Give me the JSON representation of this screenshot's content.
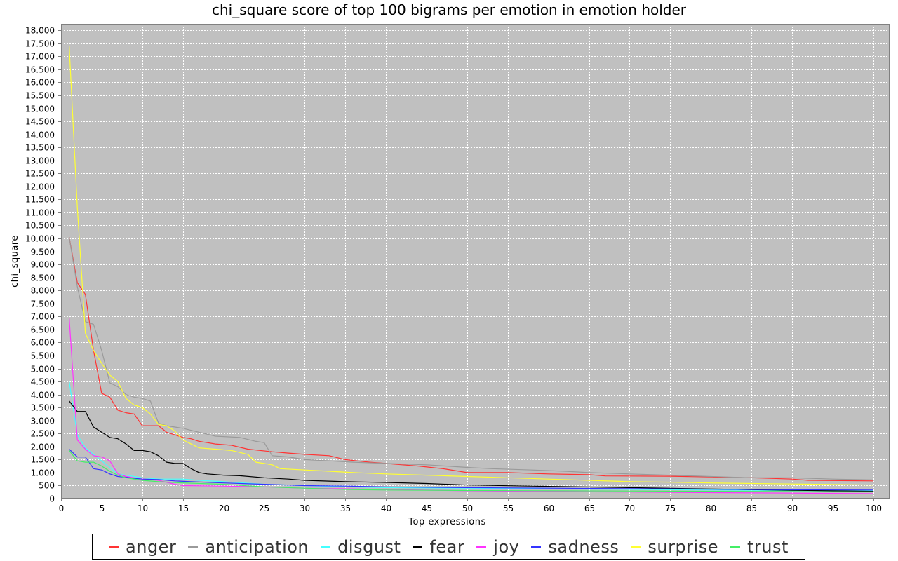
{
  "chart_data": {
    "type": "line",
    "title": "chi_square score of top 100 bigrams per emotion in emotion holder",
    "xlabel": "Top expressions",
    "ylabel": "chi_square",
    "xlim": [
      0,
      102
    ],
    "ylim": [
      0,
      18250
    ],
    "x_ticks": [
      0,
      5,
      10,
      15,
      20,
      25,
      30,
      35,
      40,
      45,
      50,
      55,
      60,
      65,
      70,
      75,
      80,
      85,
      90,
      95,
      100
    ],
    "y_ticks": [
      0,
      500,
      1000,
      1500,
      2000,
      2500,
      3000,
      3500,
      4000,
      4500,
      5000,
      5500,
      6000,
      6500,
      7000,
      7500,
      8000,
      8500,
      9000,
      9500,
      10000,
      10500,
      11000,
      11500,
      12000,
      12500,
      13000,
      13500,
      14000,
      14500,
      15000,
      15500,
      16000,
      16500,
      17000,
      17500,
      18000
    ],
    "y_tick_labels": [
      "0",
      "500",
      "1.000",
      "1.500",
      "2.000",
      "2.500",
      "3.000",
      "3.500",
      "4.000",
      "4.500",
      "5.000",
      "5.500",
      "6.000",
      "6.500",
      "7.000",
      "7.500",
      "8.000",
      "8.500",
      "9.000",
      "9.500",
      "10.000",
      "10.500",
      "11.000",
      "11.500",
      "12.000",
      "12.500",
      "13.000",
      "13.500",
      "14.000",
      "14.500",
      "15.000",
      "15.500",
      "16.000",
      "16.500",
      "17.000",
      "17.500",
      "18.000"
    ],
    "grid": true,
    "legend_position": "bottom",
    "plot_background": "#c0c0c0",
    "series": [
      {
        "name": "anger",
        "color": "#ff3333",
        "points": [
          [
            1,
            10050
          ],
          [
            2,
            8300
          ],
          [
            3,
            7850
          ],
          [
            4,
            5700
          ],
          [
            5,
            4050
          ],
          [
            6,
            3900
          ],
          [
            7,
            3400
          ],
          [
            8,
            3300
          ],
          [
            9,
            3250
          ],
          [
            10,
            2800
          ],
          [
            12,
            2800
          ],
          [
            13,
            2550
          ],
          [
            14,
            2450
          ],
          [
            15,
            2350
          ],
          [
            16,
            2300
          ],
          [
            17,
            2200
          ],
          [
            18,
            2150
          ],
          [
            19,
            2100
          ],
          [
            21,
            2050
          ],
          [
            23,
            1900
          ],
          [
            26,
            1800
          ],
          [
            28,
            1750
          ],
          [
            30,
            1700
          ],
          [
            33,
            1650
          ],
          [
            35,
            1500
          ],
          [
            38,
            1400
          ],
          [
            40,
            1350
          ],
          [
            42,
            1300
          ],
          [
            44,
            1250
          ],
          [
            47,
            1150
          ],
          [
            50,
            1000
          ],
          [
            55,
            1000
          ],
          [
            60,
            950
          ],
          [
            65,
            920
          ],
          [
            67,
            870
          ],
          [
            75,
            860
          ],
          [
            80,
            830
          ],
          [
            85,
            800
          ],
          [
            90,
            750
          ],
          [
            92,
            700
          ],
          [
            100,
            680
          ]
        ]
      },
      {
        "name": "anticipation",
        "color": "#9a9a9a",
        "points": [
          [
            1,
            10050
          ],
          [
            2,
            8150
          ],
          [
            3,
            6800
          ],
          [
            4,
            6700
          ],
          [
            5,
            5700
          ],
          [
            6,
            4450
          ],
          [
            7,
            4300
          ],
          [
            8,
            4000
          ],
          [
            9,
            3900
          ],
          [
            10,
            3850
          ],
          [
            11,
            3750
          ],
          [
            12,
            2900
          ],
          [
            13,
            2800
          ],
          [
            15,
            2700
          ],
          [
            17,
            2550
          ],
          [
            19,
            2400
          ],
          [
            22,
            2350
          ],
          [
            24,
            2200
          ],
          [
            25,
            2150
          ],
          [
            26,
            1650
          ],
          [
            28,
            1600
          ],
          [
            30,
            1500
          ],
          [
            33,
            1450
          ],
          [
            36,
            1400
          ],
          [
            40,
            1350
          ],
          [
            45,
            1300
          ],
          [
            50,
            1200
          ],
          [
            53,
            1150
          ],
          [
            58,
            1100
          ],
          [
            62,
            1050
          ],
          [
            65,
            1000
          ],
          [
            70,
            950
          ],
          [
            75,
            900
          ],
          [
            80,
            850
          ],
          [
            85,
            800
          ],
          [
            90,
            800
          ],
          [
            95,
            750
          ],
          [
            100,
            720
          ]
        ]
      },
      {
        "name": "disgust",
        "color": "#44ffff",
        "points": [
          [
            1,
            4500
          ],
          [
            2,
            2450
          ],
          [
            3,
            1950
          ],
          [
            4,
            1700
          ],
          [
            5,
            1450
          ],
          [
            6,
            1200
          ],
          [
            7,
            950
          ],
          [
            8,
            900
          ],
          [
            10,
            800
          ],
          [
            12,
            750
          ],
          [
            15,
            750
          ],
          [
            17,
            700
          ],
          [
            20,
            650
          ],
          [
            25,
            550
          ],
          [
            30,
            500
          ],
          [
            35,
            450
          ],
          [
            40,
            420
          ],
          [
            50,
            400
          ],
          [
            60,
            370
          ],
          [
            70,
            350
          ],
          [
            80,
            330
          ],
          [
            90,
            310
          ],
          [
            100,
            300
          ]
        ]
      },
      {
        "name": "fear",
        "color": "#000000",
        "points": [
          [
            1,
            3750
          ],
          [
            2,
            3350
          ],
          [
            3,
            3350
          ],
          [
            4,
            2750
          ],
          [
            5,
            2550
          ],
          [
            6,
            2350
          ],
          [
            7,
            2300
          ],
          [
            8,
            2100
          ],
          [
            9,
            1850
          ],
          [
            10,
            1850
          ],
          [
            11,
            1800
          ],
          [
            12,
            1650
          ],
          [
            13,
            1400
          ],
          [
            14,
            1350
          ],
          [
            15,
            1350
          ],
          [
            16,
            1150
          ],
          [
            17,
            1000
          ],
          [
            18,
            950
          ],
          [
            20,
            900
          ],
          [
            22,
            880
          ],
          [
            25,
            800
          ],
          [
            28,
            750
          ],
          [
            30,
            700
          ],
          [
            35,
            650
          ],
          [
            40,
            620
          ],
          [
            45,
            580
          ],
          [
            50,
            520
          ],
          [
            60,
            470
          ],
          [
            70,
            420
          ],
          [
            80,
            370
          ],
          [
            90,
            320
          ],
          [
            95,
            300
          ],
          [
            100,
            280
          ]
        ]
      },
      {
        "name": "joy",
        "color": "#ff33ff",
        "points": [
          [
            1,
            6950
          ],
          [
            2,
            2250
          ],
          [
            3,
            1900
          ],
          [
            4,
            1650
          ],
          [
            5,
            1600
          ],
          [
            6,
            1450
          ],
          [
            7,
            950
          ],
          [
            8,
            850
          ],
          [
            10,
            750
          ],
          [
            12,
            700
          ],
          [
            14,
            550
          ],
          [
            15,
            500
          ],
          [
            20,
            480
          ],
          [
            25,
            450
          ],
          [
            30,
            400
          ],
          [
            40,
            350
          ],
          [
            50,
            300
          ],
          [
            60,
            270
          ],
          [
            70,
            250
          ],
          [
            80,
            230
          ],
          [
            90,
            210
          ],
          [
            100,
            190
          ]
        ]
      },
      {
        "name": "sadness",
        "color": "#3333ff",
        "points": [
          [
            1,
            1900
          ],
          [
            2,
            1600
          ],
          [
            3,
            1600
          ],
          [
            4,
            1150
          ],
          [
            5,
            1100
          ],
          [
            6,
            950
          ],
          [
            7,
            850
          ],
          [
            8,
            820
          ],
          [
            9,
            780
          ],
          [
            10,
            750
          ],
          [
            12,
            730
          ],
          [
            14,
            680
          ],
          [
            16,
            650
          ],
          [
            20,
            600
          ],
          [
            25,
            550
          ],
          [
            30,
            500
          ],
          [
            35,
            480
          ],
          [
            40,
            450
          ],
          [
            50,
            420
          ],
          [
            60,
            400
          ],
          [
            70,
            380
          ],
          [
            80,
            360
          ],
          [
            90,
            340
          ],
          [
            100,
            330
          ]
        ]
      },
      {
        "name": "surprise",
        "color": "#ffff33",
        "points": [
          [
            1,
            17400
          ],
          [
            2,
            11200
          ],
          [
            3,
            6350
          ],
          [
            4,
            5700
          ],
          [
            5,
            5200
          ],
          [
            6,
            4750
          ],
          [
            7,
            4500
          ],
          [
            8,
            3850
          ],
          [
            9,
            3600
          ],
          [
            10,
            3500
          ],
          [
            11,
            3250
          ],
          [
            12,
            2850
          ],
          [
            13,
            2800
          ],
          [
            14,
            2600
          ],
          [
            15,
            2250
          ],
          [
            16,
            2100
          ],
          [
            17,
            1950
          ],
          [
            19,
            1900
          ],
          [
            21,
            1850
          ],
          [
            23,
            1700
          ],
          [
            24,
            1400
          ],
          [
            25,
            1350
          ],
          [
            26,
            1300
          ],
          [
            27,
            1150
          ],
          [
            30,
            1100
          ],
          [
            33,
            1050
          ],
          [
            36,
            1000
          ],
          [
            40,
            950
          ],
          [
            45,
            900
          ],
          [
            50,
            850
          ],
          [
            55,
            800
          ],
          [
            60,
            750
          ],
          [
            65,
            700
          ],
          [
            70,
            650
          ],
          [
            75,
            630
          ],
          [
            80,
            600
          ],
          [
            90,
            560
          ],
          [
            100,
            520
          ]
        ]
      },
      {
        "name": "trust",
        "color": "#44ee66",
        "points": [
          [
            1,
            1850
          ],
          [
            2,
            1450
          ],
          [
            3,
            1400
          ],
          [
            4,
            1400
          ],
          [
            5,
            1250
          ],
          [
            6,
            1050
          ],
          [
            7,
            900
          ],
          [
            8,
            800
          ],
          [
            10,
            700
          ],
          [
            12,
            650
          ],
          [
            15,
            600
          ],
          [
            20,
            550
          ],
          [
            25,
            450
          ],
          [
            30,
            400
          ],
          [
            35,
            350
          ],
          [
            40,
            330
          ],
          [
            50,
            310
          ],
          [
            60,
            300
          ],
          [
            70,
            290
          ],
          [
            80,
            280
          ],
          [
            90,
            270
          ],
          [
            100,
            260
          ]
        ]
      }
    ]
  }
}
